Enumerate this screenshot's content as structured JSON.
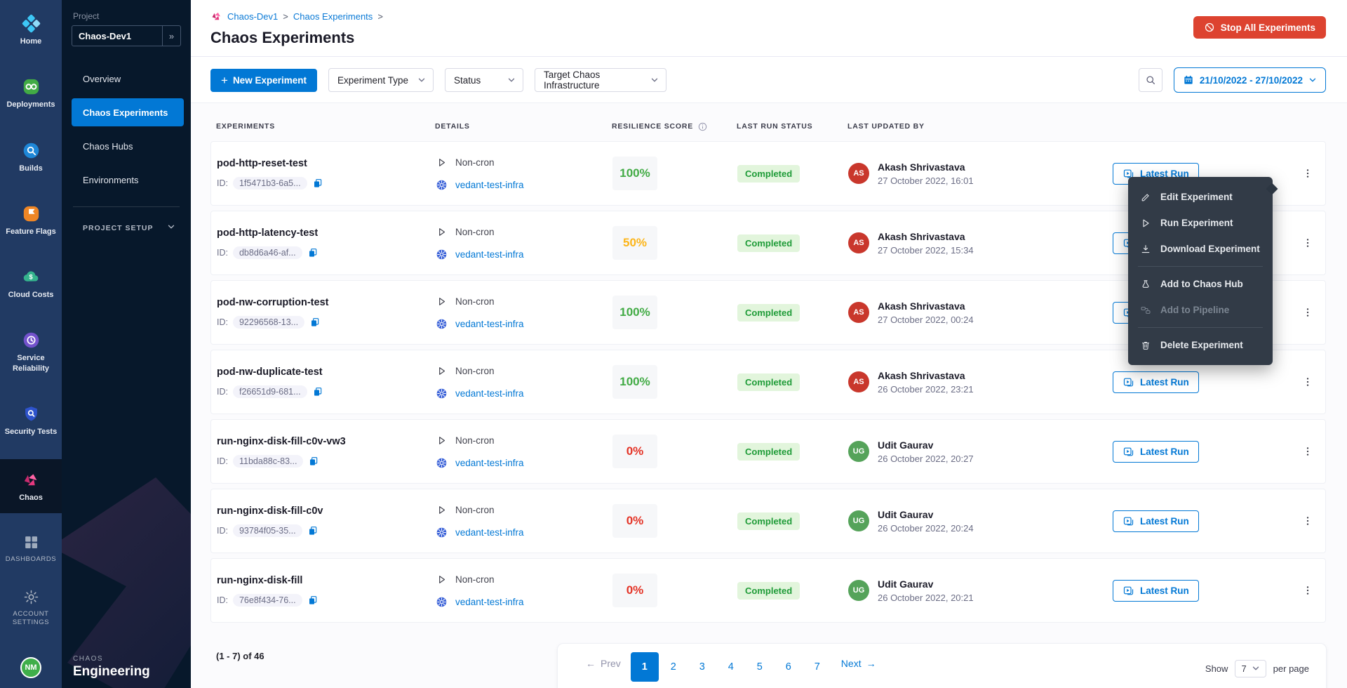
{
  "colors": {
    "accent_blue": "#0278d5",
    "stop_red": "#dd4330",
    "score": {
      "green": "#42ab45",
      "yellow": "#fcb519",
      "red": "#e43326"
    },
    "avatar": {
      "red": "#c9372c",
      "green": "#55a35a"
    },
    "status_pill_bg": "#e2f5dc",
    "status_pill_text": "#1e9b37"
  },
  "rail": {
    "items": [
      {
        "label": "Home",
        "icon": "home",
        "selected": false,
        "caps": false
      },
      {
        "label": "Deployments",
        "icon": "deployments",
        "selected": false,
        "caps": false
      },
      {
        "label": "Builds",
        "icon": "builds",
        "selected": false,
        "caps": false
      },
      {
        "label": "Feature Flags",
        "icon": "feature-flags",
        "selected": false,
        "caps": false
      },
      {
        "label": "Cloud Costs",
        "icon": "cloud-costs",
        "selected": false,
        "caps": false
      },
      {
        "label": "Service Reliability",
        "icon": "service-reliability",
        "selected": false,
        "caps": false
      },
      {
        "label": "Security Tests",
        "icon": "security-tests",
        "selected": false,
        "caps": false
      },
      {
        "label": "Chaos",
        "icon": "chaos",
        "selected": true,
        "caps": false
      },
      {
        "label": "DASHBOARDS",
        "icon": "dashboards",
        "selected": false,
        "caps": true
      },
      {
        "label": "ACCOUNT SETTINGS",
        "icon": "gear",
        "selected": false,
        "caps": true
      }
    ],
    "avatar_initials": "NM"
  },
  "subnav": {
    "project_label": "Project",
    "project_name": "Chaos-Dev1",
    "expand_glyph": "»",
    "items": [
      "Overview",
      "Chaos Experiments",
      "Chaos Hubs",
      "Environments"
    ],
    "selected_item": "Chaos Experiments",
    "section_label": "PROJECT SETUP",
    "footer_top": "CHAOS",
    "footer_bottom": "Engineering"
  },
  "header": {
    "breadcrumbs": [
      "Chaos-Dev1",
      "Chaos Experiments"
    ],
    "title": "Chaos Experiments",
    "stop_button_label": "Stop All Experiments"
  },
  "toolbar": {
    "new_button_label": "New Experiment",
    "filters": [
      "Experiment Type",
      "Status",
      "Target Chaos Infrastructure"
    ],
    "date_range": "21/10/2022 - 27/10/2022"
  },
  "table": {
    "columns": [
      "EXPERIMENTS",
      "DETAILS",
      "RESILIENCE SCORE",
      "LAST RUN STATUS",
      "LAST UPDATED BY"
    ],
    "id_label": "ID:",
    "action_label": "Latest Run",
    "rows": [
      {
        "name": "pod-http-reset-test",
        "id": "1f5471b3-6a5...",
        "type": "Non-cron",
        "infra": "vedant-test-infra",
        "score": "100%",
        "score_level": "green",
        "status": "Completed",
        "user": "Akash Shrivastava",
        "initials": "AS",
        "avatar": "red",
        "date": "27 October 2022, 16:01"
      },
      {
        "name": "pod-http-latency-test",
        "id": "db8d6a46-af...",
        "type": "Non-cron",
        "infra": "vedant-test-infra",
        "score": "50%",
        "score_level": "yellow",
        "status": "Completed",
        "user": "Akash Shrivastava",
        "initials": "AS",
        "avatar": "red",
        "date": "27 October 2022, 15:34"
      },
      {
        "name": "pod-nw-corruption-test",
        "id": "92296568-13...",
        "type": "Non-cron",
        "infra": "vedant-test-infra",
        "score": "100%",
        "score_level": "green",
        "status": "Completed",
        "user": "Akash Shrivastava",
        "initials": "AS",
        "avatar": "red",
        "date": "27 October 2022, 00:24"
      },
      {
        "name": "pod-nw-duplicate-test",
        "id": "f26651d9-681...",
        "type": "Non-cron",
        "infra": "vedant-test-infra",
        "score": "100%",
        "score_level": "green",
        "status": "Completed",
        "user": "Akash Shrivastava",
        "initials": "AS",
        "avatar": "red",
        "date": "26 October 2022, 23:21"
      },
      {
        "name": "run-nginx-disk-fill-c0v-vw3",
        "id": "11bda88c-83...",
        "type": "Non-cron",
        "infra": "vedant-test-infra",
        "score": "0%",
        "score_level": "red",
        "status": "Completed",
        "user": "Udit Gaurav",
        "initials": "UG",
        "avatar": "green",
        "date": "26 October 2022, 20:27"
      },
      {
        "name": "run-nginx-disk-fill-c0v",
        "id": "93784f05-35...",
        "type": "Non-cron",
        "infra": "vedant-test-infra",
        "score": "0%",
        "score_level": "red",
        "status": "Completed",
        "user": "Udit Gaurav",
        "initials": "UG",
        "avatar": "green",
        "date": "26 October 2022, 20:24"
      },
      {
        "name": "run-nginx-disk-fill",
        "id": "76e8f434-76...",
        "type": "Non-cron",
        "infra": "vedant-test-infra",
        "score": "0%",
        "score_level": "red",
        "status": "Completed",
        "user": "Udit Gaurav",
        "initials": "UG",
        "avatar": "green",
        "date": "26 October 2022, 20:21"
      }
    ]
  },
  "context_menu": {
    "items": [
      {
        "label": "Edit Experiment",
        "icon": "edit",
        "disabled": false,
        "divider_after": false
      },
      {
        "label": "Run Experiment",
        "icon": "run",
        "disabled": false,
        "divider_after": false
      },
      {
        "label": "Download Experiment",
        "icon": "download",
        "disabled": false,
        "divider_after": true
      },
      {
        "label": "Add to Chaos Hub",
        "icon": "hub",
        "disabled": false,
        "divider_after": false
      },
      {
        "label": "Add to Pipeline",
        "icon": "pipeline",
        "disabled": true,
        "divider_after": true
      },
      {
        "label": "Delete Experiment",
        "icon": "delete",
        "disabled": false,
        "divider_after": false
      }
    ]
  },
  "pagination": {
    "summary": "(1 - 7) of 46",
    "prev_label": "Prev",
    "next_label": "Next",
    "pages": [
      "1",
      "2",
      "3",
      "4",
      "5",
      "6",
      "7"
    ],
    "active_page": "1",
    "show_label": "Show",
    "per_page_value": "7",
    "per_page_suffix": "per page"
  }
}
